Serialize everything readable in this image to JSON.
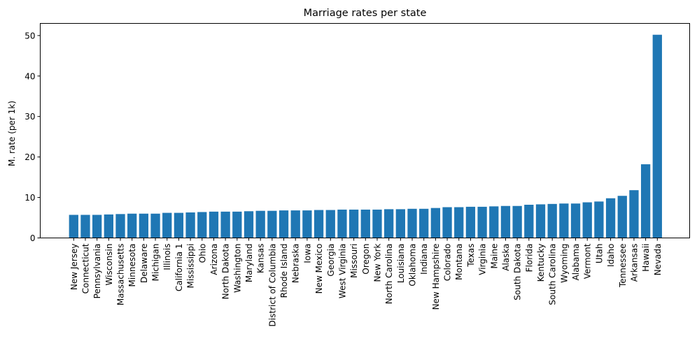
{
  "chart_data": {
    "type": "bar",
    "title": "Marriage rates per state",
    "xlabel": "",
    "ylabel": "M. rate (per 1k)",
    "ylim": [
      0,
      53
    ],
    "yticks": [
      0,
      10,
      20,
      30,
      40,
      50
    ],
    "grid": false,
    "color": "#1f77b4",
    "categories": [
      "New Jersey",
      "Connecticut",
      "Pennsylvania",
      "Wisconsin",
      "Massachusetts",
      "Minnesota",
      "Delaware",
      "Michigan",
      "Illinois",
      "California 1",
      "Mississippi",
      "Ohio",
      "Arizona",
      "North Dakota",
      "Washington",
      "Maryland",
      "Kansas",
      "District of Columbia",
      "Rhode Island",
      "Nebraska",
      "Iowa",
      "New Mexico",
      "Georgia",
      "West Virginia",
      "Missouri",
      "Oregon",
      "New York",
      "North Carolina",
      "Louisiana",
      "Oklahoma",
      "Indiana",
      "New Hampshire",
      "Colorado",
      "Montana",
      "Texas",
      "Virginia",
      "Maine",
      "Alaska",
      "South Dakota",
      "Florida",
      "Kentucky",
      "South Carolina",
      "Wyoming",
      "Alabama",
      "Vermont",
      "Utah",
      "Idaho",
      "Tennessee",
      "Arkansas",
      "Hawaii",
      "Nevada"
    ],
    "values": [
      5.7,
      5.7,
      5.7,
      5.8,
      5.9,
      6.0,
      6.0,
      6.0,
      6.2,
      6.2,
      6.3,
      6.4,
      6.5,
      6.5,
      6.5,
      6.6,
      6.7,
      6.7,
      6.8,
      6.8,
      6.8,
      6.9,
      6.9,
      7.0,
      7.0,
      7.0,
      7.0,
      7.1,
      7.1,
      7.2,
      7.2,
      7.4,
      7.6,
      7.6,
      7.7,
      7.7,
      7.8,
      7.9,
      7.9,
      8.2,
      8.3,
      8.4,
      8.5,
      8.5,
      8.8,
      9.0,
      9.8,
      10.4,
      11.8,
      18.2,
      50.2
    ]
  }
}
